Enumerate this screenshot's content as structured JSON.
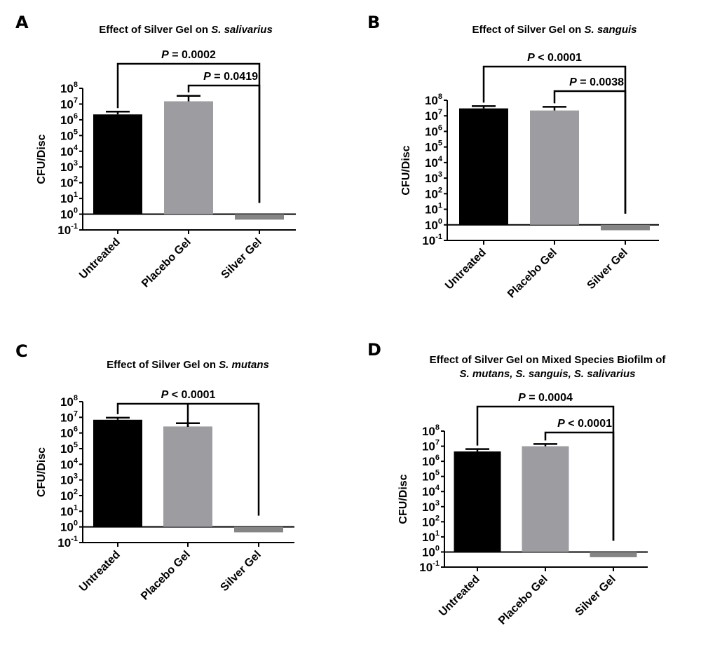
{
  "figure": {
    "colors": {
      "untreated": "#000000",
      "placebo": "#9d9ca1",
      "silver": "#858585",
      "axis": "#000000"
    }
  },
  "chart_data": [
    {
      "panel": "A",
      "type": "bar",
      "title": "Effect of Silver Gel on ",
      "title_italic": "S. salivarius",
      "title_line2": "",
      "ylabel": "CFU/Disc",
      "xlabel": "",
      "yscale": "log",
      "ylim": [
        0.1,
        100000000
      ],
      "baseline": 1,
      "yticks": [
        {
          "base": "10",
          "exp": "8"
        },
        {
          "base": "10",
          "exp": "7"
        },
        {
          "base": "10",
          "exp": "6"
        },
        {
          "base": "10",
          "exp": "5"
        },
        {
          "base": "10",
          "exp": "4"
        },
        {
          "base": "10",
          "exp": "3"
        },
        {
          "base": "10",
          "exp": "2"
        },
        {
          "base": "10",
          "exp": "1"
        },
        {
          "base": "10",
          "exp": "0"
        },
        {
          "base": "10",
          "exp": "-1"
        }
      ],
      "categories": [
        "Untreated",
        "Placebo Gel",
        "Silver Gel"
      ],
      "values": [
        2200000,
        15000000,
        0.45
      ],
      "error_upper": [
        3300000,
        33000000,
        null
      ],
      "comparisons": [
        {
          "from": 0,
          "to": 2,
          "label_prefix": "P",
          "label_rest": " = 0.0002"
        },
        {
          "from": 1,
          "to": 2,
          "label_prefix": "P",
          "label_rest": " = 0.0419"
        }
      ]
    },
    {
      "panel": "B",
      "type": "bar",
      "title": "Effect of Silver Gel on ",
      "title_italic": "S. sanguis",
      "title_line2": "",
      "ylabel": "CFU/Disc",
      "xlabel": "",
      "yscale": "log",
      "ylim": [
        0.1,
        100000000
      ],
      "baseline": 1,
      "yticks": [
        {
          "base": "10",
          "exp": "8"
        },
        {
          "base": "10",
          "exp": "7"
        },
        {
          "base": "10",
          "exp": "6"
        },
        {
          "base": "10",
          "exp": "5"
        },
        {
          "base": "10",
          "exp": "4"
        },
        {
          "base": "10",
          "exp": "3"
        },
        {
          "base": "10",
          "exp": "2"
        },
        {
          "base": "10",
          "exp": "1"
        },
        {
          "base": "10",
          "exp": "0"
        },
        {
          "base": "10",
          "exp": "-1"
        }
      ],
      "categories": [
        "Untreated",
        "Placebo Gel",
        "Silver Gel"
      ],
      "values": [
        30000000,
        22000000,
        0.45
      ],
      "error_upper": [
        42000000,
        38000000,
        null
      ],
      "comparisons": [
        {
          "from": 0,
          "to": 2,
          "label_prefix": "P",
          "label_rest": " < 0.0001"
        },
        {
          "from": 1,
          "to": 2,
          "label_prefix": "P",
          "label_rest": " = 0.0038"
        }
      ]
    },
    {
      "panel": "C",
      "type": "bar",
      "title": "Effect of Silver Gel on ",
      "title_italic": "S. mutans",
      "title_line2": "",
      "ylabel": "CFU/Disc",
      "xlabel": "",
      "yscale": "log",
      "ylim": [
        0.1,
        100000000
      ],
      "baseline": 1,
      "yticks": [
        {
          "base": "10",
          "exp": "8"
        },
        {
          "base": "10",
          "exp": "7"
        },
        {
          "base": "10",
          "exp": "6"
        },
        {
          "base": "10",
          "exp": "5"
        },
        {
          "base": "10",
          "exp": "4"
        },
        {
          "base": "10",
          "exp": "3"
        },
        {
          "base": "10",
          "exp": "2"
        },
        {
          "base": "10",
          "exp": "1"
        },
        {
          "base": "10",
          "exp": "0"
        },
        {
          "base": "10",
          "exp": "-1"
        }
      ],
      "categories": [
        "Untreated",
        "Placebo Gel",
        "Silver Gel"
      ],
      "values": [
        7000000,
        2600000,
        0.45
      ],
      "error_upper": [
        9500000,
        4200000,
        null
      ],
      "comparisons": [
        {
          "from": 0,
          "to": 2,
          "center_drop": 1,
          "label_prefix": "P",
          "label_rest": " < 0.0001"
        }
      ]
    },
    {
      "panel": "D",
      "type": "bar",
      "title": "Effect of Silver Gel on Mixed Species Biofilm of",
      "title_italic": "",
      "title_line2": "S. mutans, S. sanguis, S. salivarius",
      "ylabel": "CFU/Disc",
      "xlabel": "",
      "yscale": "log",
      "ylim": [
        0.1,
        100000000
      ],
      "baseline": 1,
      "yticks": [
        {
          "base": "10",
          "exp": "8"
        },
        {
          "base": "10",
          "exp": "7"
        },
        {
          "base": "10",
          "exp": "6"
        },
        {
          "base": "10",
          "exp": "5"
        },
        {
          "base": "10",
          "exp": "4"
        },
        {
          "base": "10",
          "exp": "3"
        },
        {
          "base": "10",
          "exp": "2"
        },
        {
          "base": "10",
          "exp": "1"
        },
        {
          "base": "10",
          "exp": "0"
        },
        {
          "base": "10",
          "exp": "-1"
        }
      ],
      "categories": [
        "Untreated",
        "Placebo Gel",
        "Silver Gel"
      ],
      "values": [
        4500000,
        10000000,
        0.45
      ],
      "error_upper": [
        6500000,
        14000000,
        null
      ],
      "comparisons": [
        {
          "from": 0,
          "to": 2,
          "label_prefix": "P",
          "label_rest": " = 0.0004"
        },
        {
          "from": 1,
          "to": 2,
          "label_prefix": "P",
          "label_rest": " < 0.0001"
        }
      ]
    }
  ]
}
